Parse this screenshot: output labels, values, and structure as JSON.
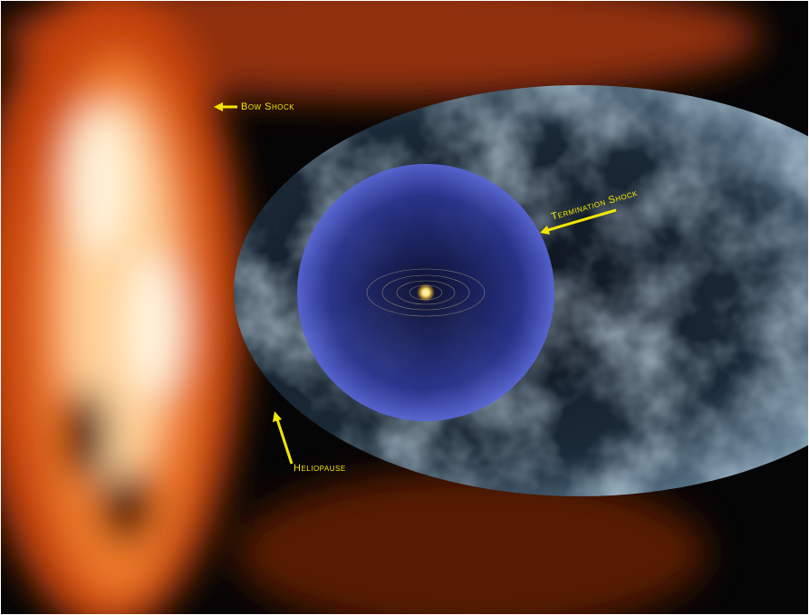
{
  "annotations": [
    "Bow Shock",
    "Termination Shock",
    "Heliopause"
  ]
}
